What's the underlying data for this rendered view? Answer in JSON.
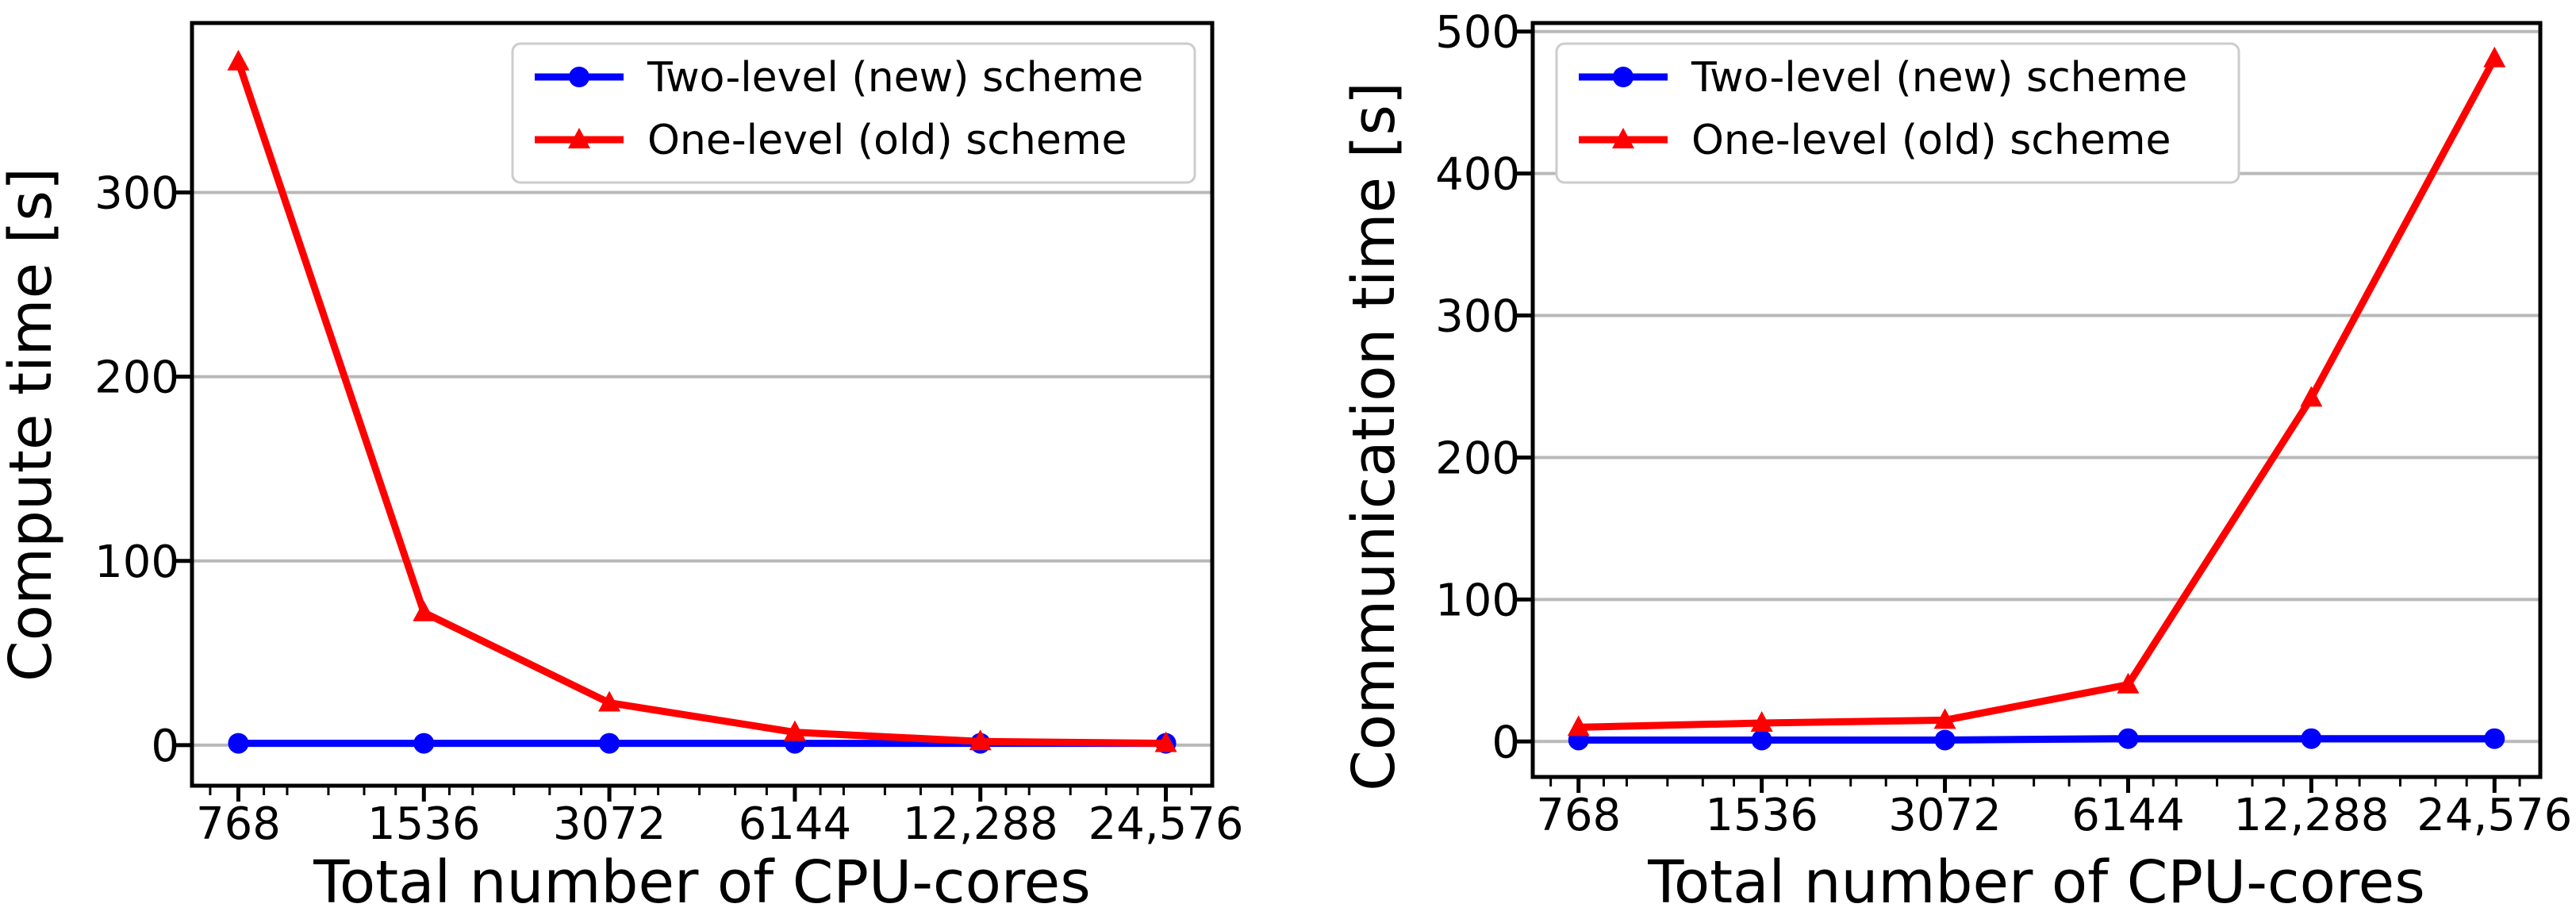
{
  "figure": {
    "background": "#ffffff",
    "description": "Two side-by-side line charts comparing compute time and communication time versus total number of CPU-cores for two parallelization schemes"
  },
  "colors": {
    "two_level_blue": "#0000ff",
    "one_level_red": "#ff0000",
    "gridline_gray": "#b9b9b9",
    "frame_black": "#000000",
    "legend_border_gray": "#cccccc",
    "background_white": "#ffffff"
  },
  "legend": {
    "entries": [
      {
        "label": "Two-level (new) scheme",
        "color": "#0000ff",
        "marker": "circle"
      },
      {
        "label": "One-level (old) scheme",
        "color": "#ff0000",
        "marker": "triangle"
      }
    ]
  },
  "chart_data": [
    {
      "type": "line",
      "title": "",
      "x_scale": "log2",
      "xlabel": "Total number of CPU-cores",
      "ylabel": "Compute time [s]",
      "x": [
        768,
        1536,
        3072,
        6144,
        12288,
        24576
      ],
      "xtick_labels": [
        "768",
        "1536",
        "3072",
        "6144",
        "12,288",
        "24,576"
      ],
      "yticks": [
        0,
        100,
        200,
        300
      ],
      "ylim": [
        -22,
        392
      ],
      "grid": true,
      "legend_position": "upper right",
      "series": [
        {
          "name": "Two-level (new) scheme",
          "color": "#0000ff",
          "marker": "circle",
          "values": [
            1,
            1,
            1,
            1,
            1,
            1
          ]
        },
        {
          "name": "One-level (old) scheme",
          "color": "#ff0000",
          "marker": "triangle",
          "values": [
            371,
            72,
            23,
            7,
            2,
            1
          ]
        }
      ]
    },
    {
      "type": "line",
      "title": "",
      "x_scale": "log2",
      "xlabel": "Total number of CPU-cores",
      "ylabel": "Communication time [s]",
      "x": [
        768,
        1536,
        3072,
        6144,
        12288,
        24576
      ],
      "xtick_labels": [
        "768",
        "1536",
        "3072",
        "6144",
        "12,288",
        "24,576"
      ],
      "yticks": [
        0,
        100,
        200,
        300,
        400,
        500
      ],
      "ylim": [
        -25,
        506
      ],
      "grid": true,
      "legend_position": "upper left",
      "series": [
        {
          "name": "Two-level (new) scheme",
          "color": "#0000ff",
          "marker": "circle",
          "values": [
            1,
            1,
            1,
            2,
            2,
            2
          ]
        },
        {
          "name": "One-level (old) scheme",
          "color": "#ff0000",
          "marker": "triangle",
          "values": [
            10,
            13,
            15,
            40,
            242,
            481
          ]
        }
      ]
    }
  ]
}
